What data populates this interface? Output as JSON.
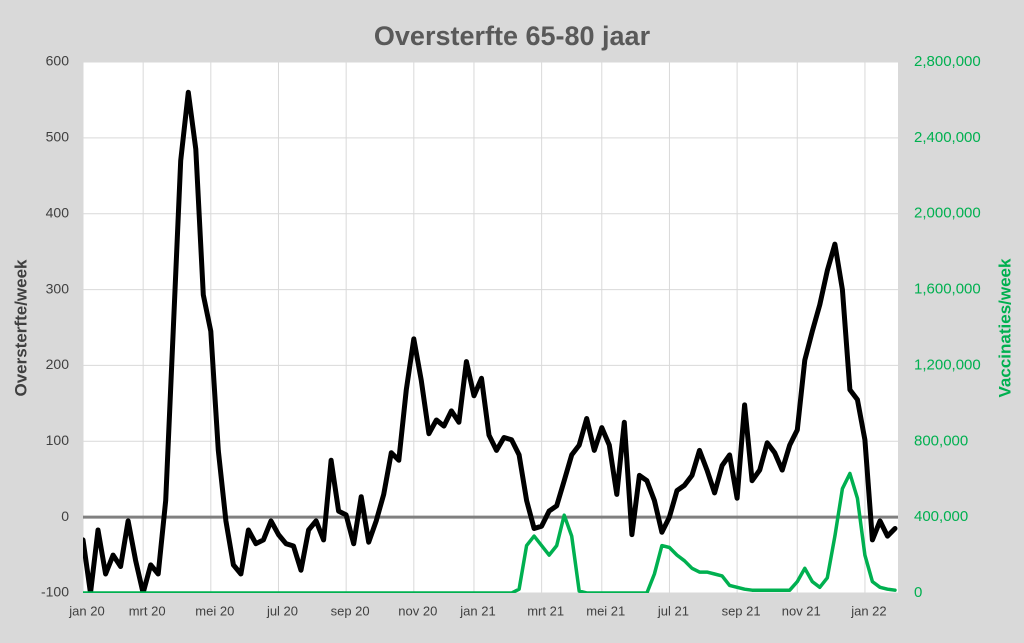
{
  "chart_data": {
    "type": "line",
    "title": "Oversterfte 65-80 jaar",
    "y_label": "Oversterfte/week",
    "y2_label": "Vaccinaties/week",
    "categories": [
      "jan 20",
      null,
      null,
      null,
      null,
      null,
      null,
      null,
      "mrt 20",
      null,
      null,
      null,
      null,
      null,
      null,
      null,
      null,
      "mei 20",
      null,
      null,
      null,
      null,
      null,
      null,
      null,
      null,
      "jul 20",
      null,
      null,
      null,
      null,
      null,
      null,
      null,
      null,
      "sep 20",
      null,
      null,
      null,
      null,
      null,
      null,
      null,
      null,
      "nov 20",
      null,
      null,
      null,
      null,
      null,
      null,
      null,
      "jan 21",
      null,
      null,
      null,
      null,
      null,
      null,
      null,
      null,
      "mrt 21",
      null,
      null,
      null,
      null,
      null,
      null,
      null,
      "mei 21",
      null,
      null,
      null,
      null,
      null,
      null,
      null,
      null,
      "jul 21",
      null,
      null,
      null,
      null,
      null,
      null,
      null,
      null,
      "sep 21",
      null,
      null,
      null,
      null,
      null,
      null,
      null,
      "nov 21",
      null,
      null,
      null,
      null,
      null,
      null,
      null,
      null,
      "jan 22",
      null,
      null,
      null,
      null
    ],
    "series": [
      {
        "name": "Oversterfte/week",
        "color": "#000000",
        "values": [
          -30,
          -100,
          -17,
          -75,
          -50,
          -65,
          -5,
          -57,
          -100,
          -63,
          -75,
          22,
          245,
          470,
          560,
          485,
          293,
          245,
          88,
          -5,
          -63,
          -75,
          -17,
          -35,
          -30,
          -5,
          -23,
          -35,
          -38,
          -70,
          -17,
          -5,
          -30,
          75,
          8,
          3,
          -35,
          27,
          -33,
          -5,
          30,
          85,
          75,
          168,
          235,
          180,
          110,
          128,
          120,
          140,
          125,
          205,
          160,
          183,
          108,
          88,
          105,
          102,
          82,
          22,
          -15,
          -12,
          8,
          15,
          48,
          82,
          95,
          130,
          88,
          118,
          95,
          30,
          125,
          -23,
          55,
          48,
          22,
          -20,
          0,
          35,
          42,
          55,
          88,
          62,
          32,
          68,
          82,
          25,
          148,
          48,
          62,
          98,
          85,
          62,
          95,
          115,
          207,
          245,
          280,
          325,
          360,
          300,
          168,
          155,
          102,
          -30,
          -5,
          -25,
          -15
        ]
      },
      {
        "name": "Vaccinaties/week",
        "color": "#00b050",
        "axis": "y2",
        "values": [
          0,
          0,
          0,
          0,
          0,
          0,
          0,
          0,
          0,
          0,
          0,
          0,
          0,
          0,
          0,
          0,
          0,
          0,
          0,
          0,
          0,
          0,
          0,
          0,
          0,
          0,
          0,
          0,
          0,
          0,
          0,
          0,
          0,
          0,
          0,
          0,
          0,
          0,
          0,
          0,
          0,
          0,
          0,
          0,
          0,
          0,
          0,
          0,
          0,
          0,
          0,
          0,
          0,
          0,
          0,
          0,
          0,
          0,
          20000,
          250000,
          300000,
          250000,
          200000,
          250000,
          410000,
          300000,
          10000,
          0,
          0,
          0,
          0,
          0,
          0,
          0,
          0,
          0,
          100000,
          250000,
          240000,
          200000,
          170000,
          130000,
          110000,
          110000,
          100000,
          90000,
          40000,
          30000,
          20000,
          15000,
          15000,
          15000,
          15000,
          15000,
          15000,
          60000,
          130000,
          60000,
          30000,
          80000,
          300000,
          550000,
          630000,
          500000,
          200000,
          60000,
          30000,
          20000,
          15000
        ]
      }
    ],
    "ylim": [
      -100,
      600
    ],
    "yticks": [
      -100,
      0,
      100,
      200,
      300,
      400,
      500,
      600
    ],
    "y2lim": [
      0,
      2800000
    ],
    "y2ticks": [
      0,
      {
        "value": 400000,
        "label": "400,000"
      },
      {
        "value": 800000,
        "label": "800,000"
      },
      {
        "value": 1200000,
        "label": "1,200,000"
      },
      {
        "value": 1600000,
        "label": "1,600,000"
      },
      {
        "value": 2000000,
        "label": "2,000,000"
      },
      {
        "value": 2400000,
        "label": "2,400,000"
      },
      {
        "value": 2800000,
        "label": "2,800,000"
      }
    ],
    "grid": true
  }
}
